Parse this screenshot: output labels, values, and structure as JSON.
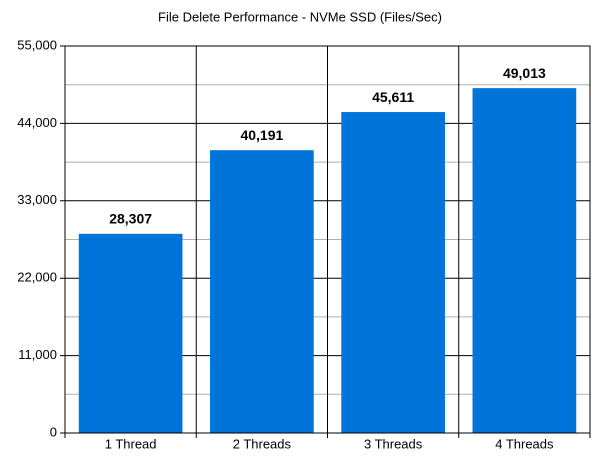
{
  "chart_data": {
    "type": "bar",
    "title": "File Delete Performance - NVMe SSD (Files/Sec)",
    "categories": [
      "1 Thread",
      "2 Threads",
      "3 Threads",
      "4 Threads"
    ],
    "values": [
      28307,
      40191,
      45611,
      49013
    ],
    "value_labels": [
      "28,307",
      "40,191",
      "45,611",
      "49,013"
    ],
    "color": "#0074d9",
    "ylim": [
      0,
      55000
    ],
    "yticks": [
      0,
      {
        "value": 11000,
        "label": "11,000"
      },
      {
        "value": 22000,
        "label": "22,000"
      },
      {
        "value": 33000,
        "label": "33,000"
      },
      {
        "value": 44000,
        "label": "44,000"
      },
      {
        "value": 55000,
        "label": "55,000"
      }
    ],
    "minor_yticks": [
      5500,
      16500,
      27500,
      38500,
      49500
    ],
    "grid": true
  }
}
